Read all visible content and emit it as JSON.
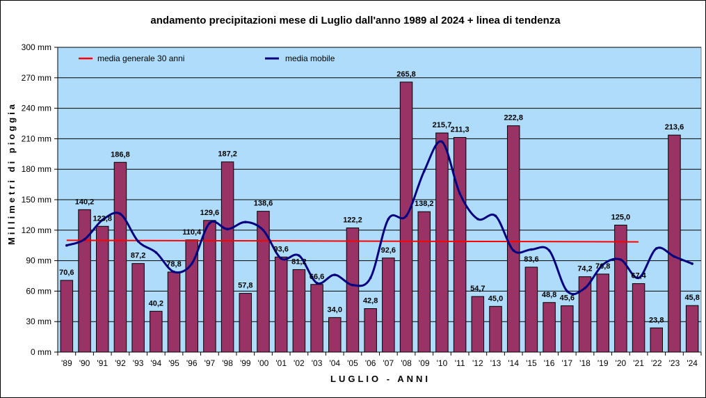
{
  "chart_data": {
    "type": "bar",
    "title": "andamento precipitazioni mese di Luglio dall'anno 1989 al 2024 + linea di tendenza",
    "xlabel": "LUGLIO - ANNI",
    "ylabel": "Millimetri di pioggia",
    "ylim": [
      0,
      300
    ],
    "yticks": [
      "0 mm",
      "30 mm",
      "60 mm",
      "90 mm",
      "120 mm",
      "150 mm",
      "180 mm",
      "210 mm",
      "240 mm",
      "270 mm",
      "300 mm"
    ],
    "ytick_values": [
      0,
      30,
      60,
      90,
      120,
      150,
      180,
      210,
      240,
      270,
      300
    ],
    "categories": [
      "'89",
      "'90",
      "'91",
      "'92",
      "'93",
      "'94",
      "'95",
      "'96",
      "'97",
      "'98",
      "'99",
      "'00",
      "'01",
      "'02",
      "'03",
      "'04",
      "'05",
      "'06",
      "'07",
      "'08",
      "'09",
      "'10",
      "'11",
      "'12",
      "'13",
      "'14",
      "'15",
      "'16",
      "'17",
      "'18",
      "'19",
      "'20",
      "'21",
      "'22",
      "'23",
      "'24"
    ],
    "values": [
      70.6,
      140.2,
      123.8,
      186.8,
      87.2,
      40.2,
      78.8,
      110.4,
      129.6,
      187.2,
      57.8,
      138.6,
      93.6,
      81.2,
      66.6,
      34.0,
      122.2,
      42.8,
      92.6,
      265.8,
      138.2,
      215.7,
      211.3,
      54.7,
      45.0,
      222.8,
      83.6,
      48.8,
      45.6,
      74.2,
      76.8,
      125.0,
      67.4,
      23.8,
      213.6,
      45.8
    ],
    "value_labels": [
      "70,6",
      "140,2",
      "123,8",
      "186,8",
      "87,2",
      "40,2",
      "78,8",
      "110,4",
      "129,6",
      "187,2",
      "57,8",
      "138,6",
      "93,6",
      "81,2",
      "66,6",
      "34,0",
      "122,2",
      "42,8",
      "92,6",
      "265,8",
      "138,2",
      "215,7",
      "211,3",
      "54,7",
      "45,0",
      "222,8",
      "83,6",
      "48,8",
      "45,6",
      "74,2",
      "76,8",
      "125,0",
      "67,4",
      "23,8",
      "213,6",
      "45,8"
    ],
    "series": [
      {
        "name": "media generale 30 anni",
        "type": "line",
        "color": "#ff0000",
        "start": "'89",
        "end": "'21",
        "values_start": 110.0,
        "values_end": 108.5
      },
      {
        "name": "media mobile",
        "type": "line",
        "smooth": true,
        "color": "#000080",
        "values": [
          105,
          111,
          130,
          136,
          109,
          98,
          79,
          87,
          127,
          121,
          128,
          120,
          92,
          95,
          68,
          76,
          66,
          73,
          131,
          134,
          178,
          207,
          156,
          131,
          134,
          100,
          101,
          100,
          60,
          63,
          86,
          91,
          73,
          102,
          94,
          87
        ]
      }
    ],
    "grid": true,
    "legend_position": "top-left",
    "colors": {
      "bar": "#993366",
      "plot_bg": "#aedcfa",
      "mean_line": "#ff0000",
      "moving_avg": "#000080"
    }
  }
}
